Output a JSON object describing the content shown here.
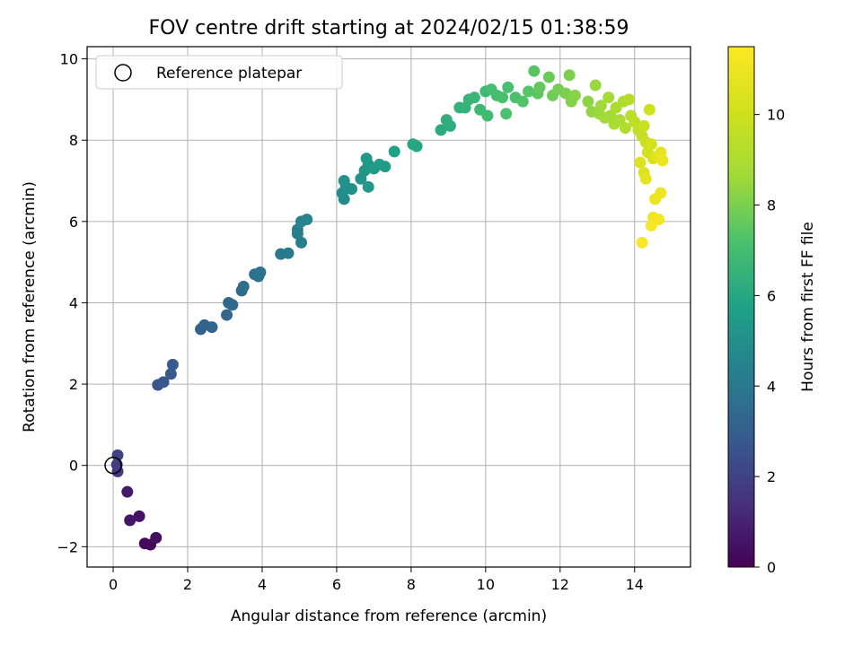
{
  "chart_data": {
    "type": "scatter",
    "title": "FOV centre drift starting at 2024/02/15 01:38:59",
    "xlabel": "Angular distance from reference (arcmin)",
    "ylabel": "Rotation from reference (arcmin)",
    "xlim": [
      -0.7,
      15.5
    ],
    "ylim": [
      -2.5,
      10.3
    ],
    "xticks": [
      0,
      2,
      4,
      6,
      8,
      10,
      12,
      14
    ],
    "yticks": [
      -2,
      0,
      2,
      4,
      6,
      8,
      10
    ],
    "grid": true,
    "legend": {
      "placement": "top-left",
      "entries": [
        "Reference platepar"
      ]
    },
    "reference_point": {
      "x": 0,
      "y": 0,
      "label": "Reference platepar"
    },
    "colorbar": {
      "label": "Hours from first FF file",
      "range": [
        0,
        11.5
      ],
      "ticks": [
        0,
        2,
        4,
        6,
        8,
        10
      ],
      "colormap": "viridis"
    },
    "points": [
      {
        "x": 1.0,
        "y": -1.95,
        "c": 0.2
      },
      {
        "x": 0.85,
        "y": -1.92,
        "c": 0.3
      },
      {
        "x": 1.15,
        "y": -1.78,
        "c": 0.4
      },
      {
        "x": 0.7,
        "y": -1.25,
        "c": 0.5
      },
      {
        "x": 0.45,
        "y": -1.35,
        "c": 0.6
      },
      {
        "x": 0.38,
        "y": -0.65,
        "c": 0.8
      },
      {
        "x": 0.12,
        "y": -0.15,
        "c": 1.6
      },
      {
        "x": 0.1,
        "y": 0.02,
        "c": 1.8
      },
      {
        "x": 0.12,
        "y": 0.25,
        "c": 2.0
      },
      {
        "x": 1.2,
        "y": 1.98,
        "c": 2.6
      },
      {
        "x": 1.35,
        "y": 2.05,
        "c": 2.7
      },
      {
        "x": 1.55,
        "y": 2.25,
        "c": 2.8
      },
      {
        "x": 1.6,
        "y": 2.48,
        "c": 2.9
      },
      {
        "x": 2.35,
        "y": 3.35,
        "c": 3.1
      },
      {
        "x": 2.45,
        "y": 3.45,
        "c": 3.1
      },
      {
        "x": 2.65,
        "y": 3.4,
        "c": 3.2
      },
      {
        "x": 3.05,
        "y": 3.7,
        "c": 3.3
      },
      {
        "x": 3.1,
        "y": 4.0,
        "c": 3.4
      },
      {
        "x": 3.2,
        "y": 3.95,
        "c": 3.4
      },
      {
        "x": 3.45,
        "y": 4.3,
        "c": 3.5
      },
      {
        "x": 3.5,
        "y": 4.4,
        "c": 3.6
      },
      {
        "x": 3.8,
        "y": 4.7,
        "c": 3.7
      },
      {
        "x": 3.95,
        "y": 4.75,
        "c": 3.8
      },
      {
        "x": 3.9,
        "y": 4.65,
        "c": 3.8
      },
      {
        "x": 4.5,
        "y": 5.2,
        "c": 4.0
      },
      {
        "x": 4.7,
        "y": 5.22,
        "c": 4.1
      },
      {
        "x": 4.95,
        "y": 5.7,
        "c": 4.2
      },
      {
        "x": 5.05,
        "y": 5.48,
        "c": 4.3
      },
      {
        "x": 4.95,
        "y": 5.8,
        "c": 4.3
      },
      {
        "x": 5.05,
        "y": 6.0,
        "c": 4.4
      },
      {
        "x": 5.2,
        "y": 6.05,
        "c": 4.5
      },
      {
        "x": 6.15,
        "y": 6.7,
        "c": 4.8
      },
      {
        "x": 6.2,
        "y": 6.55,
        "c": 4.9
      },
      {
        "x": 6.25,
        "y": 6.85,
        "c": 5.0
      },
      {
        "x": 6.4,
        "y": 6.8,
        "c": 5.0
      },
      {
        "x": 6.2,
        "y": 7.0,
        "c": 5.1
      },
      {
        "x": 6.65,
        "y": 7.05,
        "c": 5.2
      },
      {
        "x": 6.75,
        "y": 7.25,
        "c": 5.3
      },
      {
        "x": 6.85,
        "y": 7.4,
        "c": 5.3
      },
      {
        "x": 6.8,
        "y": 7.55,
        "c": 5.4
      },
      {
        "x": 6.85,
        "y": 6.85,
        "c": 5.4
      },
      {
        "x": 7.0,
        "y": 7.3,
        "c": 5.5
      },
      {
        "x": 7.15,
        "y": 7.4,
        "c": 5.6
      },
      {
        "x": 7.3,
        "y": 7.35,
        "c": 5.6
      },
      {
        "x": 7.55,
        "y": 7.72,
        "c": 5.8
      },
      {
        "x": 8.05,
        "y": 7.9,
        "c": 6.0
      },
      {
        "x": 8.15,
        "y": 7.85,
        "c": 6.0
      },
      {
        "x": 8.8,
        "y": 8.25,
        "c": 6.2
      },
      {
        "x": 8.95,
        "y": 8.5,
        "c": 6.3
      },
      {
        "x": 9.05,
        "y": 8.35,
        "c": 6.3
      },
      {
        "x": 9.3,
        "y": 8.8,
        "c": 6.5
      },
      {
        "x": 9.45,
        "y": 8.8,
        "c": 6.5
      },
      {
        "x": 9.55,
        "y": 9.0,
        "c": 6.6
      },
      {
        "x": 9.7,
        "y": 9.05,
        "c": 6.7
      },
      {
        "x": 9.85,
        "y": 8.75,
        "c": 6.8
      },
      {
        "x": 10.0,
        "y": 9.2,
        "c": 6.8
      },
      {
        "x": 10.05,
        "y": 8.6,
        "c": 6.9
      },
      {
        "x": 10.15,
        "y": 9.25,
        "c": 7.0
      },
      {
        "x": 10.3,
        "y": 9.1,
        "c": 7.0
      },
      {
        "x": 10.45,
        "y": 9.05,
        "c": 7.1
      },
      {
        "x": 10.6,
        "y": 9.3,
        "c": 7.1
      },
      {
        "x": 10.55,
        "y": 8.65,
        "c": 7.2
      },
      {
        "x": 10.8,
        "y": 9.05,
        "c": 7.2
      },
      {
        "x": 11.0,
        "y": 8.95,
        "c": 7.3
      },
      {
        "x": 11.15,
        "y": 9.2,
        "c": 7.4
      },
      {
        "x": 11.3,
        "y": 9.7,
        "c": 7.4
      },
      {
        "x": 11.4,
        "y": 9.15,
        "c": 7.5
      },
      {
        "x": 11.45,
        "y": 9.3,
        "c": 7.6
      },
      {
        "x": 11.7,
        "y": 9.55,
        "c": 7.7
      },
      {
        "x": 11.8,
        "y": 9.1,
        "c": 7.8
      },
      {
        "x": 11.95,
        "y": 9.25,
        "c": 7.9
      },
      {
        "x": 12.15,
        "y": 9.15,
        "c": 8.0
      },
      {
        "x": 12.25,
        "y": 9.6,
        "c": 8.0
      },
      {
        "x": 12.3,
        "y": 8.95,
        "c": 8.1
      },
      {
        "x": 12.4,
        "y": 9.1,
        "c": 8.2
      },
      {
        "x": 12.75,
        "y": 8.95,
        "c": 8.3
      },
      {
        "x": 12.85,
        "y": 8.7,
        "c": 8.4
      },
      {
        "x": 12.95,
        "y": 9.35,
        "c": 8.5
      },
      {
        "x": 13.05,
        "y": 8.65,
        "c": 8.5
      },
      {
        "x": 13.1,
        "y": 8.85,
        "c": 8.6
      },
      {
        "x": 13.2,
        "y": 8.55,
        "c": 8.7
      },
      {
        "x": 13.3,
        "y": 9.05,
        "c": 8.8
      },
      {
        "x": 13.35,
        "y": 8.6,
        "c": 8.8
      },
      {
        "x": 13.45,
        "y": 8.4,
        "c": 8.9
      },
      {
        "x": 13.5,
        "y": 8.8,
        "c": 9.0
      },
      {
        "x": 13.6,
        "y": 8.5,
        "c": 9.0
      },
      {
        "x": 13.7,
        "y": 8.95,
        "c": 9.1
      },
      {
        "x": 13.75,
        "y": 8.3,
        "c": 9.2
      },
      {
        "x": 13.85,
        "y": 9.0,
        "c": 9.3
      },
      {
        "x": 13.9,
        "y": 8.6,
        "c": 9.4
      },
      {
        "x": 14.0,
        "y": 8.45,
        "c": 9.5
      },
      {
        "x": 14.1,
        "y": 8.25,
        "c": 9.6
      },
      {
        "x": 14.2,
        "y": 8.1,
        "c": 9.7
      },
      {
        "x": 14.25,
        "y": 8.35,
        "c": 9.8
      },
      {
        "x": 14.3,
        "y": 7.95,
        "c": 9.9
      },
      {
        "x": 14.4,
        "y": 8.75,
        "c": 10.0
      },
      {
        "x": 14.35,
        "y": 7.7,
        "c": 10.1
      },
      {
        "x": 14.45,
        "y": 7.9,
        "c": 10.2
      },
      {
        "x": 14.5,
        "y": 7.55,
        "c": 10.3
      },
      {
        "x": 14.15,
        "y": 7.45,
        "c": 10.4
      },
      {
        "x": 14.25,
        "y": 7.2,
        "c": 10.5
      },
      {
        "x": 14.6,
        "y": 7.6,
        "c": 10.6
      },
      {
        "x": 14.3,
        "y": 7.05,
        "c": 10.7
      },
      {
        "x": 14.7,
        "y": 7.7,
        "c": 10.8
      },
      {
        "x": 14.55,
        "y": 6.55,
        "c": 10.9
      },
      {
        "x": 14.7,
        "y": 6.7,
        "c": 11.0
      },
      {
        "x": 14.5,
        "y": 6.1,
        "c": 11.1
      },
      {
        "x": 14.65,
        "y": 6.05,
        "c": 11.2
      },
      {
        "x": 14.45,
        "y": 5.9,
        "c": 11.3
      },
      {
        "x": 14.2,
        "y": 5.48,
        "c": 11.4
      },
      {
        "x": 14.75,
        "y": 7.5,
        "c": 10.9
      }
    ]
  }
}
